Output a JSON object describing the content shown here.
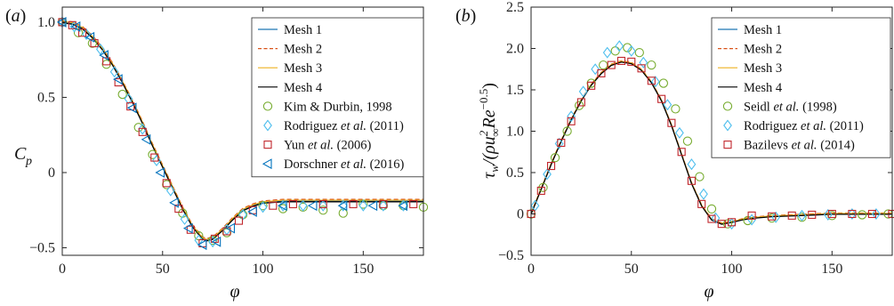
{
  "chart_data": [
    {
      "panel_label": "(a)",
      "type": "line",
      "ylabel_main": "C",
      "ylabel_sub": "p",
      "xlabel": "φ",
      "xlim": [
        0,
        180
      ],
      "ylim": [
        -0.55,
        1.1
      ],
      "xticks": [
        0,
        50,
        100,
        150
      ],
      "yticks": [
        -0.5,
        0,
        0.5,
        1.0
      ],
      "ytick_labels": [
        "−0.5",
        "0",
        "0.5",
        "1.0"
      ],
      "legend_position": "right",
      "lines": [
        {
          "name": "Mesh 1",
          "color": "#1f77b4",
          "dash": "solid"
        },
        {
          "name": "Mesh 2",
          "color": "#d95319",
          "dash": "dashed"
        },
        {
          "name": "Mesh 3",
          "color": "#edb120",
          "dash": "solid"
        },
        {
          "name": "Mesh 4",
          "color": "#000000",
          "dash": "solid"
        }
      ],
      "curve": {
        "x": [
          0,
          5,
          10,
          15,
          20,
          25,
          30,
          35,
          40,
          45,
          50,
          55,
          60,
          65,
          70,
          72,
          75,
          80,
          85,
          90,
          95,
          100,
          105,
          110,
          120,
          130,
          140,
          150,
          160,
          170,
          180
        ],
        "y": [
          1.0,
          0.99,
          0.96,
          0.9,
          0.82,
          0.72,
          0.6,
          0.47,
          0.33,
          0.18,
          0.04,
          -0.1,
          -0.24,
          -0.36,
          -0.44,
          -0.45,
          -0.44,
          -0.38,
          -0.31,
          -0.25,
          -0.22,
          -0.2,
          -0.195,
          -0.19,
          -0.19,
          -0.19,
          -0.19,
          -0.19,
          -0.19,
          -0.19,
          -0.19
        ]
      },
      "markers": [
        {
          "name": "Kim & Durbin, 1998",
          "shape": "circle",
          "color": "#77ac30",
          "x": [
            0,
            8,
            15,
            22,
            30,
            38,
            45,
            52,
            60,
            68,
            75,
            82,
            90,
            100,
            110,
            120,
            130,
            140,
            150,
            160,
            170,
            180
          ],
          "y": [
            1.0,
            0.93,
            0.86,
            0.72,
            0.52,
            0.3,
            0.12,
            -0.08,
            -0.27,
            -0.42,
            -0.45,
            -0.4,
            -0.28,
            -0.22,
            -0.24,
            -0.23,
            -0.25,
            -0.27,
            -0.21,
            -0.22,
            -0.22,
            -0.23
          ]
        },
        {
          "name": "Rodriguez et al. (2011)",
          "shape": "diamond",
          "color": "#4dbeee",
          "x": [
            0,
            6,
            12,
            19,
            26,
            33,
            40,
            47,
            54,
            61,
            68,
            75,
            82,
            90,
            100,
            110,
            120,
            130,
            140,
            150,
            160,
            170
          ],
          "y": [
            1.0,
            0.97,
            0.92,
            0.82,
            0.67,
            0.49,
            0.29,
            0.08,
            -0.12,
            -0.31,
            -0.45,
            -0.46,
            -0.38,
            -0.28,
            -0.23,
            -0.22,
            -0.22,
            -0.22,
            -0.22,
            -0.22,
            -0.22,
            -0.22
          ]
        },
        {
          "name": "Yun et al. (2006)",
          "shape": "square",
          "color": "#c1272d",
          "x": [
            0,
            5,
            10,
            16,
            22,
            28,
            34,
            40,
            46,
            52,
            58,
            64,
            70,
            76,
            82,
            88,
            95,
            105,
            115,
            130,
            145,
            160,
            175
          ],
          "y": [
            1.0,
            0.98,
            0.93,
            0.86,
            0.74,
            0.6,
            0.44,
            0.27,
            0.1,
            -0.07,
            -0.24,
            -0.38,
            -0.47,
            -0.44,
            -0.39,
            -0.32,
            -0.25,
            -0.22,
            -0.21,
            -0.21,
            -0.21,
            -0.21,
            -0.21
          ]
        },
        {
          "name": "Dorschner et al. (2016)",
          "shape": "triangle-left",
          "color": "#0072bd",
          "x": [
            0,
            7,
            14,
            21,
            28,
            35,
            42,
            49,
            56,
            63,
            70,
            77,
            84,
            95,
            110,
            125,
            140,
            155,
            170
          ],
          "y": [
            1.0,
            0.97,
            0.9,
            0.78,
            0.62,
            0.43,
            0.22,
            0.0,
            -0.2,
            -0.37,
            -0.48,
            -0.46,
            -0.37,
            -0.26,
            -0.22,
            -0.22,
            -0.22,
            -0.22,
            -0.22
          ]
        }
      ]
    },
    {
      "panel_label": "(b)",
      "type": "line",
      "ylabel": "τw/(ρu∞² Re^−0.5)",
      "xlabel": "φ",
      "xlim": [
        0,
        180
      ],
      "ylim": [
        -0.5,
        2.5
      ],
      "xticks": [
        0,
        50,
        100,
        150
      ],
      "yticks": [
        -0.5,
        0,
        0.5,
        1.0,
        1.5,
        2.0,
        2.5
      ],
      "ytick_labels": [
        "−0.5",
        "0",
        "0.5",
        "1.0",
        "1.5",
        "2.0",
        "2.5"
      ],
      "legend_position": "right",
      "lines": [
        {
          "name": "Mesh 1",
          "color": "#1f77b4",
          "dash": "solid"
        },
        {
          "name": "Mesh 2",
          "color": "#d95319",
          "dash": "dashed"
        },
        {
          "name": "Mesh 3",
          "color": "#edb120",
          "dash": "solid"
        },
        {
          "name": "Mesh 4",
          "color": "#000000",
          "dash": "solid"
        }
      ],
      "curve": {
        "x": [
          0,
          5,
          10,
          15,
          20,
          25,
          30,
          35,
          40,
          45,
          50,
          55,
          60,
          65,
          70,
          75,
          80,
          85,
          90,
          95,
          100,
          105,
          110,
          120,
          130,
          140,
          150,
          160,
          170,
          180
        ],
        "y": [
          0,
          0.3,
          0.6,
          0.88,
          1.14,
          1.37,
          1.56,
          1.7,
          1.8,
          1.84,
          1.82,
          1.74,
          1.59,
          1.37,
          1.07,
          0.72,
          0.37,
          0.1,
          -0.07,
          -0.12,
          -0.1,
          -0.07,
          -0.05,
          -0.03,
          -0.02,
          -0.01,
          0,
          0,
          0,
          0
        ]
      },
      "markers": [
        {
          "name": "Seidl et al. (1998)",
          "shape": "circle",
          "color": "#77ac30",
          "x": [
            0,
            6,
            12,
            18,
            24,
            30,
            36,
            42,
            48,
            54,
            60,
            66,
            72,
            78,
            84,
            90,
            98,
            108,
            120,
            135,
            150,
            165,
            178
          ],
          "y": [
            0,
            0.32,
            0.68,
            1.0,
            1.31,
            1.58,
            1.8,
            1.97,
            2.01,
            1.95,
            1.8,
            1.58,
            1.27,
            0.88,
            0.45,
            0.06,
            -0.12,
            -0.08,
            -0.05,
            -0.04,
            -0.02,
            -0.01,
            0
          ]
        },
        {
          "name": "Rodriguez et al. (2011)",
          "shape": "diamond",
          "color": "#4dbeee",
          "x": [
            2,
            8,
            14,
            20,
            26,
            32,
            38,
            44,
            50,
            56,
            62,
            68,
            74,
            80,
            86,
            92,
            100,
            110,
            122,
            135,
            148,
            160,
            172
          ],
          "y": [
            0.1,
            0.48,
            0.85,
            1.18,
            1.48,
            1.75,
            1.95,
            2.03,
            1.97,
            1.83,
            1.6,
            1.32,
            0.98,
            0.6,
            0.24,
            -0.05,
            -0.12,
            -0.07,
            -0.04,
            -0.02,
            -0.01,
            0,
            0
          ]
        },
        {
          "name": "Bazilevs et al. (2014)",
          "shape": "square",
          "color": "#c1272d",
          "x": [
            0,
            5,
            10,
            15,
            20,
            25,
            30,
            35,
            40,
            45,
            50,
            55,
            60,
            65,
            70,
            75,
            80,
            85,
            90,
            95,
            100,
            110,
            120,
            130,
            140,
            150,
            160,
            170,
            180
          ],
          "y": [
            0,
            0.28,
            0.58,
            0.86,
            1.12,
            1.35,
            1.55,
            1.7,
            1.8,
            1.85,
            1.84,
            1.76,
            1.61,
            1.39,
            1.1,
            0.75,
            0.4,
            0.12,
            -0.06,
            -0.12,
            -0.1,
            -0.02,
            -0.03,
            -0.02,
            -0.01,
            0,
            0,
            0,
            0
          ]
        }
      ]
    }
  ]
}
